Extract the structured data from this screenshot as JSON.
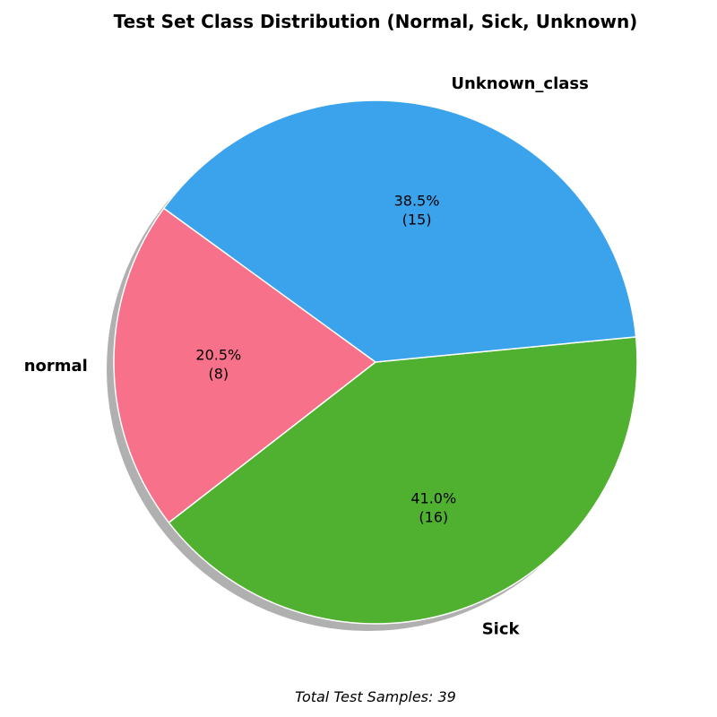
{
  "chart_data": {
    "type": "pie",
    "title": "Test Set Class Distribution (Normal, Sick, Unknown)",
    "categories": [
      "normal",
      "Sick",
      "Unknown_class"
    ],
    "values": [
      8,
      16,
      15
    ],
    "percent_labels": [
      "20.5%",
      "41.0%",
      "38.5%"
    ],
    "count_labels": [
      "(8)",
      "(16)",
      "(15)"
    ],
    "colors": [
      "#f7718a",
      "#50b131",
      "#3ba3ec"
    ],
    "start_angle_deg": 144.0,
    "direction": "counterclockwise",
    "shadow": true,
    "footer": "Total Test Samples: 39"
  }
}
